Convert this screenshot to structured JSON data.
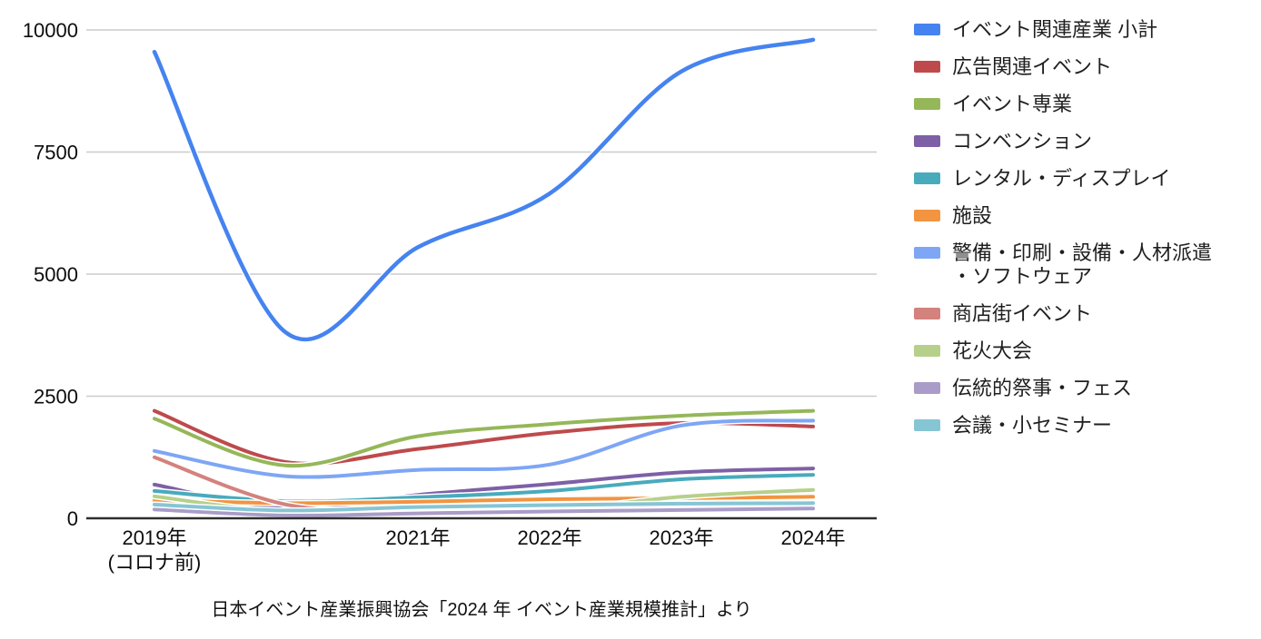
{
  "chart_data": {
    "type": "line",
    "title": "",
    "xlabel": "",
    "ylabel": "",
    "categories": [
      "2019年",
      "2020年",
      "2021年",
      "2022年",
      "2023年",
      "2024年"
    ],
    "category_note": {
      "index": 0,
      "text": "(コロナ前)"
    },
    "y_ticks": [
      0,
      2500,
      5000,
      7500,
      10000
    ],
    "ylim": [
      0,
      10000
    ],
    "grid": true,
    "smooth_lines": true,
    "legend_position": "right",
    "series": [
      {
        "name": "イベント関連産業 小計",
        "color": "#4583F0",
        "values": [
          9550,
          3800,
          5550,
          6650,
          9150,
          9800
        ]
      },
      {
        "name": "広告関連イベント",
        "color": "#BE4A4C",
        "values": [
          2200,
          1150,
          1420,
          1750,
          1950,
          1880
        ]
      },
      {
        "name": "イベント専業",
        "color": "#95B759",
        "values": [
          2040,
          1080,
          1680,
          1930,
          2100,
          2200
        ]
      },
      {
        "name": "コンベンション",
        "color": "#7E60A6",
        "values": [
          690,
          200,
          480,
          700,
          940,
          1020
        ]
      },
      {
        "name": "レンタル・ディスプレイ",
        "color": "#48ABBC",
        "values": [
          560,
          350,
          430,
          560,
          800,
          890
        ]
      },
      {
        "name": "施設",
        "color": "#F29440",
        "values": [
          370,
          310,
          340,
          390,
          410,
          440
        ]
      },
      {
        "name": "警備・印刷・設備・人材派遣\n・ソフトウェア",
        "color": "#7EA6F5",
        "values": [
          1380,
          860,
          990,
          1100,
          1900,
          2000
        ]
      },
      {
        "name": "商店街イベント",
        "color": "#D4827D",
        "values": [
          1250,
          280,
          180,
          200,
          230,
          260
        ]
      },
      {
        "name": "花火大会",
        "color": "#B6D08B",
        "values": [
          450,
          120,
          130,
          160,
          440,
          580
        ]
      },
      {
        "name": "伝統的祭事・フェス",
        "color": "#AA9CC8",
        "values": [
          180,
          60,
          100,
          140,
          170,
          200
        ]
      },
      {
        "name": "会議・小セミナー",
        "color": "#86C5D4",
        "values": [
          280,
          160,
          230,
          270,
          300,
          310
        ]
      }
    ]
  },
  "caption": "日本イベント産業振興協会「2024 年 イベント産業規模推計」より",
  "colors": {
    "background": "#ffffff",
    "gridline": "#cccccc",
    "axis": "#2e2e2e",
    "text": "#0d0d0d",
    "line_halo": "#ffffff"
  }
}
